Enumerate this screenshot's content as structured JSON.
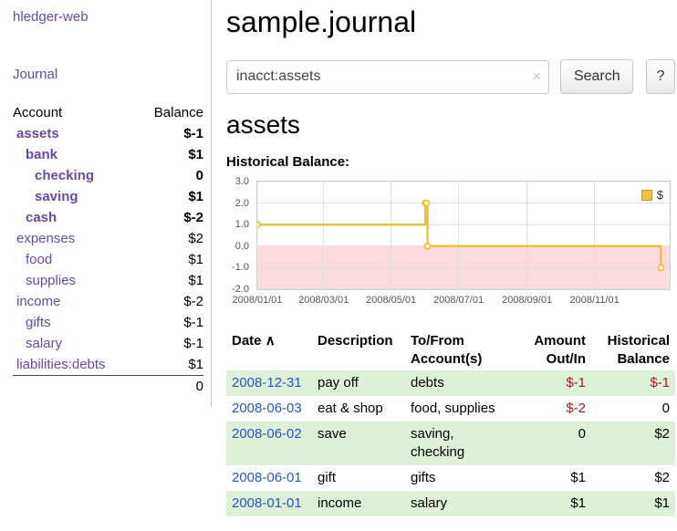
{
  "app": {
    "title": "hledger-web"
  },
  "sidebar": {
    "journal_link": "Journal",
    "accounts": {
      "header_account": "Account",
      "header_balance": "Balance",
      "rows": [
        {
          "name": "assets",
          "balance": "$-1",
          "indent": 0,
          "name_class": "neg-strong bold",
          "bal_class": "neg-strong bold"
        },
        {
          "name": "bank",
          "balance": "$1",
          "indent": 1,
          "name_class": "purple bold",
          "bal_class": "bold"
        },
        {
          "name": "checking",
          "balance": "0",
          "indent": 2,
          "name_class": "purple bold",
          "bal_class": "bold"
        },
        {
          "name": "saving",
          "balance": "$1",
          "indent": 2,
          "name_class": "purple bold",
          "bal_class": "bold"
        },
        {
          "name": "cash",
          "balance": "$-2",
          "indent": 1,
          "name_class": "neg-strong bold",
          "bal_class": "neg-strong bold"
        },
        {
          "name": "expenses",
          "balance": "$2",
          "indent": 0,
          "name_class": "purple",
          "bal_class": ""
        },
        {
          "name": "food",
          "balance": "$1",
          "indent": 1,
          "name_class": "purple",
          "bal_class": ""
        },
        {
          "name": "supplies",
          "balance": "$1",
          "indent": 1,
          "name_class": "purple",
          "bal_class": ""
        },
        {
          "name": "income",
          "balance": "$-2",
          "indent": 0,
          "name_class": "purple",
          "bal_class": "neg-soft"
        },
        {
          "name": "gifts",
          "balance": "$-1",
          "indent": 1,
          "name_class": "purple",
          "bal_class": "neg-soft"
        },
        {
          "name": "salary",
          "balance": "$-1",
          "indent": 1,
          "name_class": "purple",
          "bal_class": "neg-soft"
        },
        {
          "name": "liabilities:debts",
          "balance": "$1",
          "indent": 0,
          "name_class": "purple",
          "bal_class": ""
        }
      ],
      "total": "0"
    }
  },
  "main": {
    "title": "sample.journal",
    "search": {
      "value": "inacct:assets",
      "clear_icon": "×",
      "button_label": "Search",
      "help_label": "?"
    },
    "account_heading": "assets",
    "chart_label": "Historical Balance:"
  },
  "chart_data": {
    "type": "line",
    "title": "Historical Balance:",
    "series": [
      {
        "name": "$",
        "color": "#edc240",
        "step": true,
        "points": [
          [
            "2008-01-01",
            1
          ],
          [
            "2008-06-01",
            2
          ],
          [
            "2008-06-02",
            2
          ],
          [
            "2008-06-03",
            0
          ],
          [
            "2008-12-31",
            -1
          ]
        ]
      }
    ],
    "ylim": [
      -2.0,
      3.0
    ],
    "y_ticks": [
      3.0,
      2.0,
      1.0,
      0.0,
      -1.0,
      -2.0
    ],
    "x_range": [
      "2008-01-01",
      "2009-01-08"
    ],
    "x_ticks": [
      {
        "date": "2008-01-01",
        "label": "2008/01/01"
      },
      {
        "date": "2008-03-01",
        "label": "2008/03/01"
      },
      {
        "date": "2008-05-01",
        "label": "2008/05/01"
      },
      {
        "date": "2008-07-01",
        "label": "2008/07/01"
      },
      {
        "date": "2008-09-01",
        "label": "2008/09/01"
      },
      {
        "date": "2008-11-01",
        "label": "2008/11/01"
      }
    ],
    "legend_position": "top-right",
    "negative_fill": "#fbdcdc",
    "grid": true
  },
  "register": {
    "headers": {
      "date": "Date",
      "sort_indicator": "∧",
      "description": "Description",
      "account_line1": "To/From",
      "account_line2": "Account(s)",
      "amount_line1": "Amount",
      "amount_line2": "Out/In",
      "balance_line1": "Historical",
      "balance_line2": "Balance"
    },
    "rows": [
      {
        "date": "2008-12-31",
        "description": "pay off",
        "accounts": "debts",
        "amount": "$-1",
        "amount_neg": true,
        "balance": "$-1",
        "balance_neg": true
      },
      {
        "date": "2008-06-03",
        "description": "eat & shop",
        "accounts": "food, supplies",
        "amount": "$-2",
        "amount_neg": true,
        "balance": "0",
        "balance_neg": false
      },
      {
        "date": "2008-06-02",
        "description": "save",
        "accounts": "saving, checking",
        "amount": "0",
        "amount_neg": false,
        "balance": "$2",
        "balance_neg": false
      },
      {
        "date": "2008-06-01",
        "description": "gift",
        "accounts": "gifts",
        "amount": "$1",
        "amount_neg": false,
        "balance": "$2",
        "balance_neg": false
      },
      {
        "date": "2008-01-01",
        "description": "income",
        "accounts": "salary",
        "amount": "$1",
        "amount_neg": false,
        "balance": "$1",
        "balance_neg": false
      }
    ]
  }
}
